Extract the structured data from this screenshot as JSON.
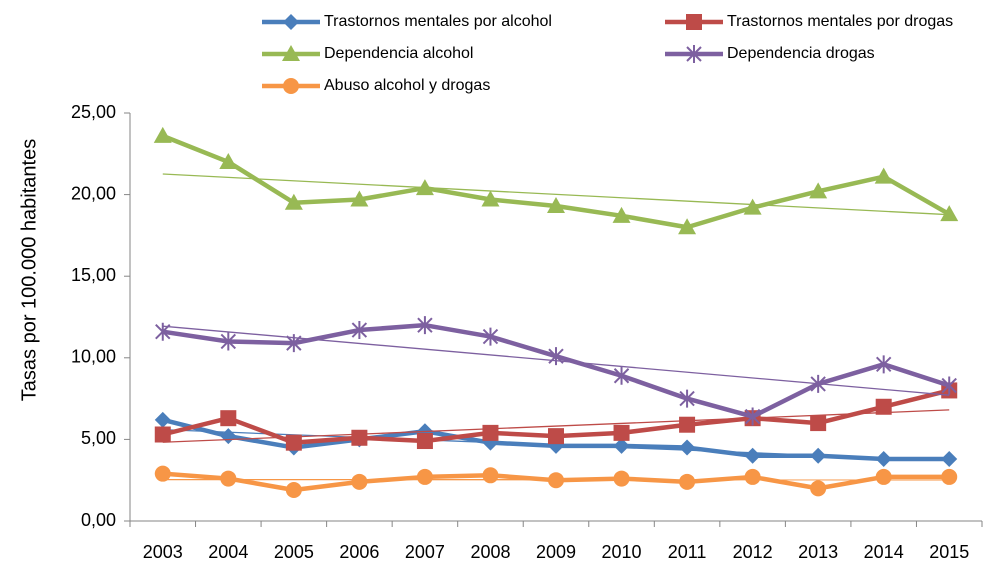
{
  "chart_data": {
    "type": "line",
    "y_label": "Tasas por 100.000 habitantes",
    "categories": [
      "2003",
      "2004",
      "2005",
      "2006",
      "2007",
      "2008",
      "2009",
      "2010",
      "2011",
      "2012",
      "2013",
      "2014",
      "2015"
    ],
    "series": [
      {
        "name": "Trastornos mentales por alcohol",
        "color": "#4a7ebb",
        "marker": "diamond",
        "values": [
          6.2,
          5.2,
          4.5,
          5.0,
          5.5,
          4.8,
          4.6,
          4.6,
          4.5,
          4.0,
          4.0,
          3.8,
          3.8
        ]
      },
      {
        "name": "Trastornos mentales por drogas",
        "color": "#be4b48",
        "marker": "square",
        "values": [
          5.3,
          6.3,
          4.8,
          5.1,
          4.9,
          5.4,
          5.2,
          5.4,
          5.9,
          6.3,
          6.0,
          7.0,
          8.0
        ]
      },
      {
        "name": "Dependencia alcohol",
        "color": "#98b954",
        "marker": "triangle",
        "values": [
          23.6,
          22.0,
          19.5,
          19.7,
          20.4,
          19.7,
          19.3,
          18.7,
          18.0,
          19.2,
          20.2,
          21.1,
          18.8
        ]
      },
      {
        "name": "Dependencia drogas",
        "color": "#7d60a0",
        "marker": "star",
        "values": [
          11.6,
          11.0,
          10.9,
          11.7,
          12.0,
          11.3,
          10.1,
          8.9,
          7.5,
          6.4,
          8.4,
          9.6,
          8.3
        ]
      },
      {
        "name": "Abuso alcohol y drogas",
        "color": "#f79646",
        "marker": "circle",
        "values": [
          2.9,
          2.6,
          1.9,
          2.4,
          2.7,
          2.8,
          2.5,
          2.6,
          2.4,
          2.7,
          2.0,
          2.7,
          2.7
        ]
      }
    ],
    "ylim": [
      0,
      25
    ],
    "yticks": [
      {
        "value": 0,
        "label": "0,00"
      },
      {
        "value": 5,
        "label": "5,00"
      },
      {
        "value": 10,
        "label": "10,00"
      },
      {
        "value": 15,
        "label": "15,00"
      },
      {
        "value": 20,
        "label": "20,00"
      },
      {
        "value": 25,
        "label": "25,00"
      }
    ],
    "grid": false,
    "trendline": true,
    "legend": "top"
  }
}
